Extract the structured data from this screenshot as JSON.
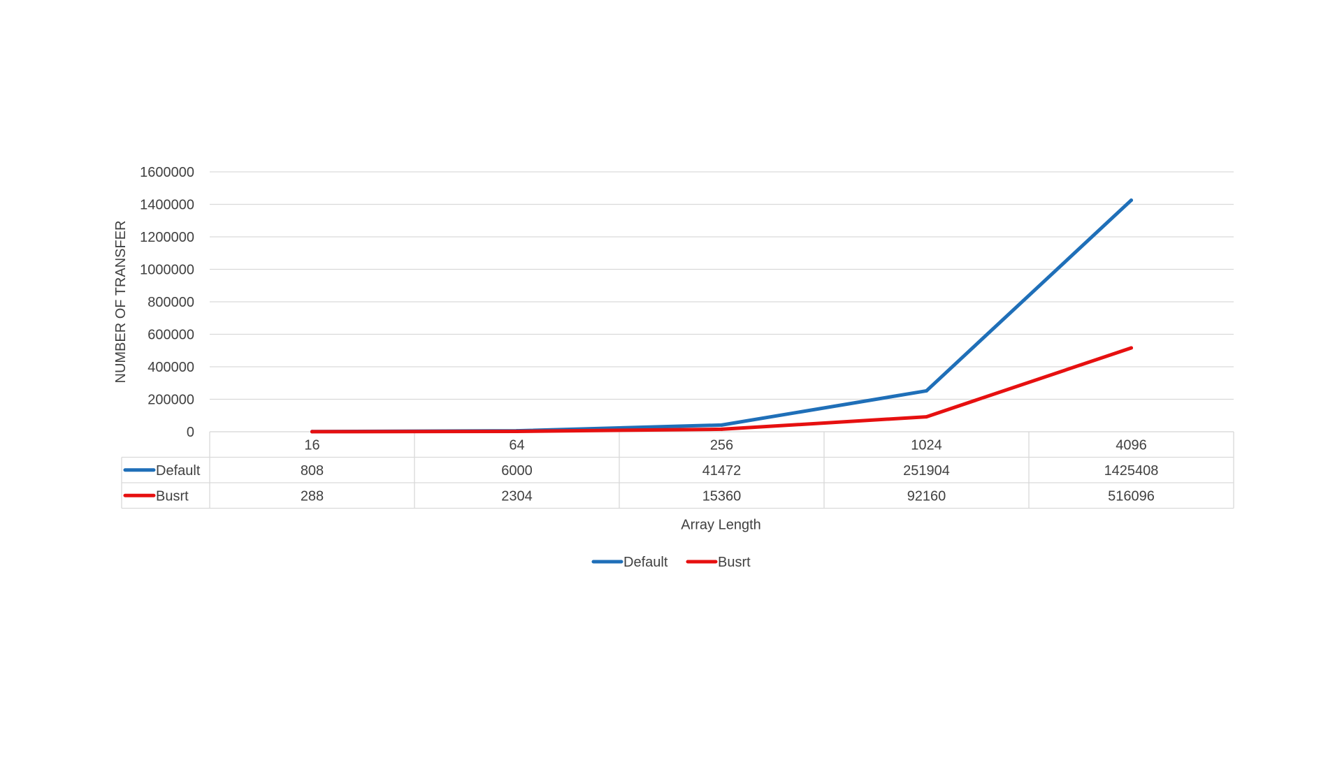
{
  "chart_data": {
    "type": "line",
    "title": "",
    "xlabel": "Array Length",
    "ylabel": "NUMBER OF TRANSFER",
    "categories": [
      "16",
      "64",
      "256",
      "1024",
      "4096"
    ],
    "ylim": [
      0,
      1600000
    ],
    "yticks": [
      0,
      200000,
      400000,
      600000,
      800000,
      1000000,
      1200000,
      1400000,
      1600000
    ],
    "grid": true,
    "legend_position": "bottom",
    "data_table": true,
    "series": [
      {
        "name": "Default",
        "color": "#1f6fb8",
        "values": [
          808,
          6000,
          41472,
          251904,
          1425408
        ]
      },
      {
        "name": "Busrt",
        "color": "#e61010",
        "values": [
          288,
          2304,
          15360,
          92160,
          516096
        ]
      }
    ]
  }
}
